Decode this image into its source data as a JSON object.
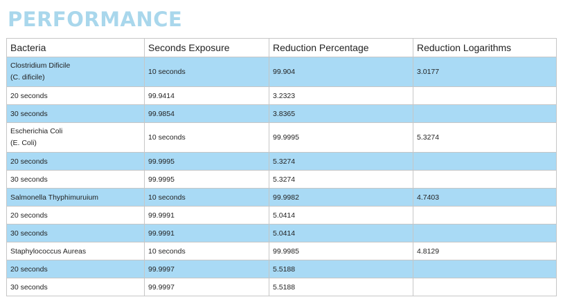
{
  "page": {
    "title": "PERFORMANCE"
  },
  "table": {
    "headers": [
      "Bacteria",
      "Seconds Exposure",
      "Reduction Percentage",
      "Reduction Logarithms"
    ],
    "rows": [
      {
        "cells": [
          [
            "Clostridium Dificile",
            "(C. dificile)"
          ],
          [
            "10 seconds"
          ],
          [
            "99.904"
          ],
          [
            "3.0177"
          ]
        ],
        "tall": true,
        "shade": "blue"
      },
      {
        "cells": [
          [
            "20 seconds"
          ],
          [
            "99.9414"
          ],
          [
            "3.2323"
          ],
          [
            ""
          ]
        ],
        "tall": false,
        "shade": "white"
      },
      {
        "cells": [
          [
            "30 seconds"
          ],
          [
            "99.9854"
          ],
          [
            "3.8365"
          ],
          [
            ""
          ]
        ],
        "tall": false,
        "shade": "blue"
      },
      {
        "cells": [
          [
            "Escherichia Coli",
            "(E. Coli)"
          ],
          [
            "10 seconds"
          ],
          [
            "99.9995"
          ],
          [
            "5.3274"
          ]
        ],
        "tall": true,
        "shade": "white"
      },
      {
        "cells": [
          [
            "20 seconds"
          ],
          [
            "99.9995"
          ],
          [
            "5.3274"
          ],
          [
            ""
          ]
        ],
        "tall": false,
        "shade": "blue"
      },
      {
        "cells": [
          [
            "30 seconds"
          ],
          [
            "99.9995"
          ],
          [
            "5.3274"
          ],
          [
            ""
          ]
        ],
        "tall": false,
        "shade": "white"
      },
      {
        "cells": [
          [
            "Salmonella Thyphimuruium"
          ],
          [
            "10 seconds"
          ],
          [
            "99.9982"
          ],
          [
            "4.7403"
          ]
        ],
        "tall": false,
        "shade": "blue"
      },
      {
        "cells": [
          [
            "20 seconds"
          ],
          [
            "99.9991"
          ],
          [
            "5.0414"
          ],
          [
            ""
          ]
        ],
        "tall": false,
        "shade": "white"
      },
      {
        "cells": [
          [
            "30 seconds"
          ],
          [
            "99.9991"
          ],
          [
            "5.0414"
          ],
          [
            ""
          ]
        ],
        "tall": false,
        "shade": "blue"
      },
      {
        "cells": [
          [
            "Staphylococcus Aureas"
          ],
          [
            "10 seconds"
          ],
          [
            "99.9985"
          ],
          [
            "4.8129"
          ]
        ],
        "tall": false,
        "shade": "white"
      },
      {
        "cells": [
          [
            "20 seconds"
          ],
          [
            "99.9997"
          ],
          [
            "5.5188"
          ],
          [
            ""
          ]
        ],
        "tall": false,
        "shade": "blue"
      },
      {
        "cells": [
          [
            "30 seconds"
          ],
          [
            "99.9997"
          ],
          [
            "5.5188"
          ],
          [
            ""
          ]
        ],
        "tall": false,
        "shade": "white"
      }
    ]
  },
  "colors": {
    "title": "#a9d7ec",
    "row_shade": "#a9daf5",
    "border": "#c6c6c6"
  }
}
